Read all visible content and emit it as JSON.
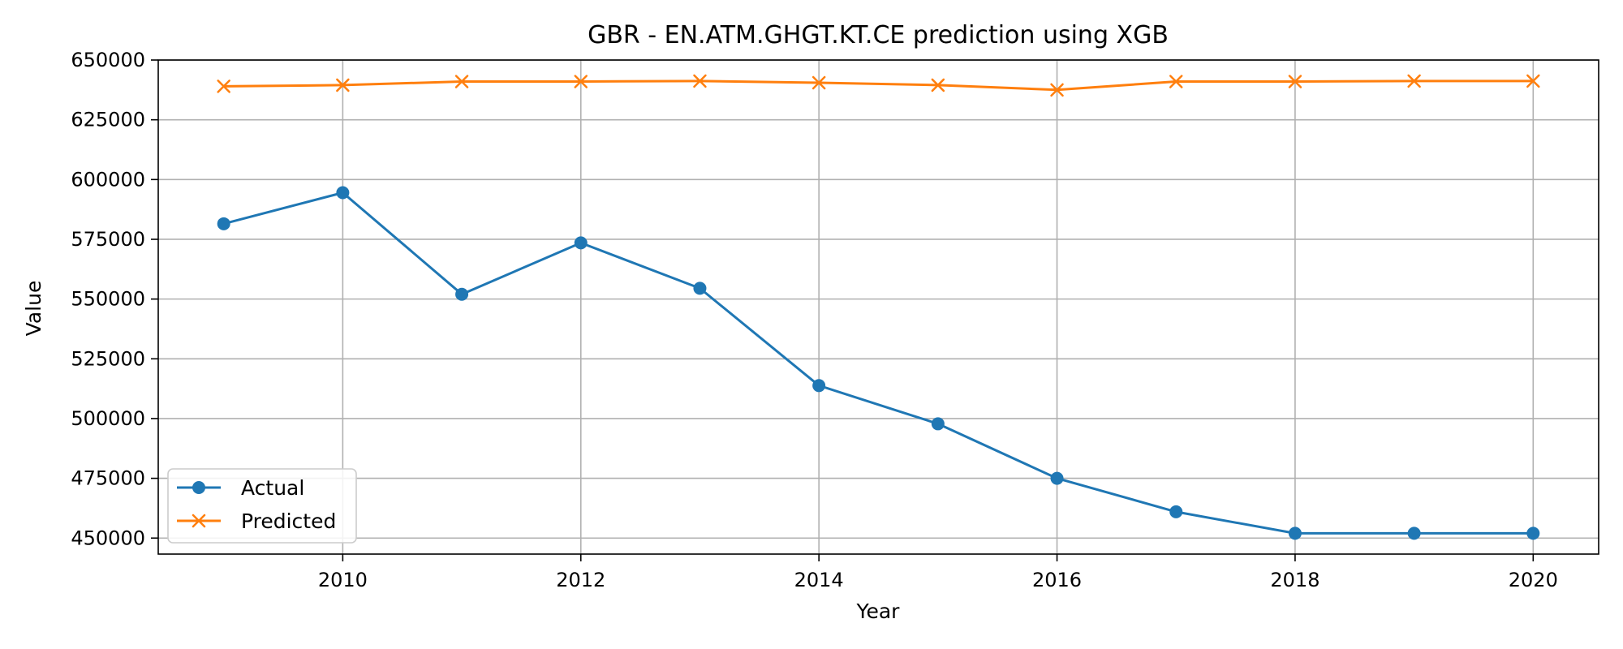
{
  "chart_data": {
    "type": "line",
    "title": "GBR - EN.ATM.GHGT.KT.CE prediction using XGB",
    "xlabel": "Year",
    "ylabel": "Value",
    "x": [
      2009,
      2010,
      2011,
      2012,
      2013,
      2014,
      2015,
      2016,
      2017,
      2018,
      2019,
      2020
    ],
    "xlim": [
      2008.45,
      2020.55
    ],
    "ylim": [
      443300,
      650000
    ],
    "xticks": [
      2010,
      2012,
      2014,
      2016,
      2018,
      2020
    ],
    "yticks": [
      450000,
      475000,
      500000,
      525000,
      550000,
      575000,
      600000,
      625000,
      650000
    ],
    "grid": true,
    "legend": "lower-left",
    "series": [
      {
        "name": "Actual",
        "color": "#1f77b4",
        "marker": "circle",
        "values": [
          581500,
          594500,
          552000,
          573500,
          554500,
          513800,
          497800,
          475000,
          461000,
          452000,
          452000,
          452000
        ]
      },
      {
        "name": "Predicted",
        "color": "#ff7f0e",
        "marker": "x",
        "values": [
          639000,
          639500,
          641000,
          641000,
          641200,
          640500,
          639500,
          637500,
          641000,
          641000,
          641200,
          641200
        ]
      }
    ]
  }
}
